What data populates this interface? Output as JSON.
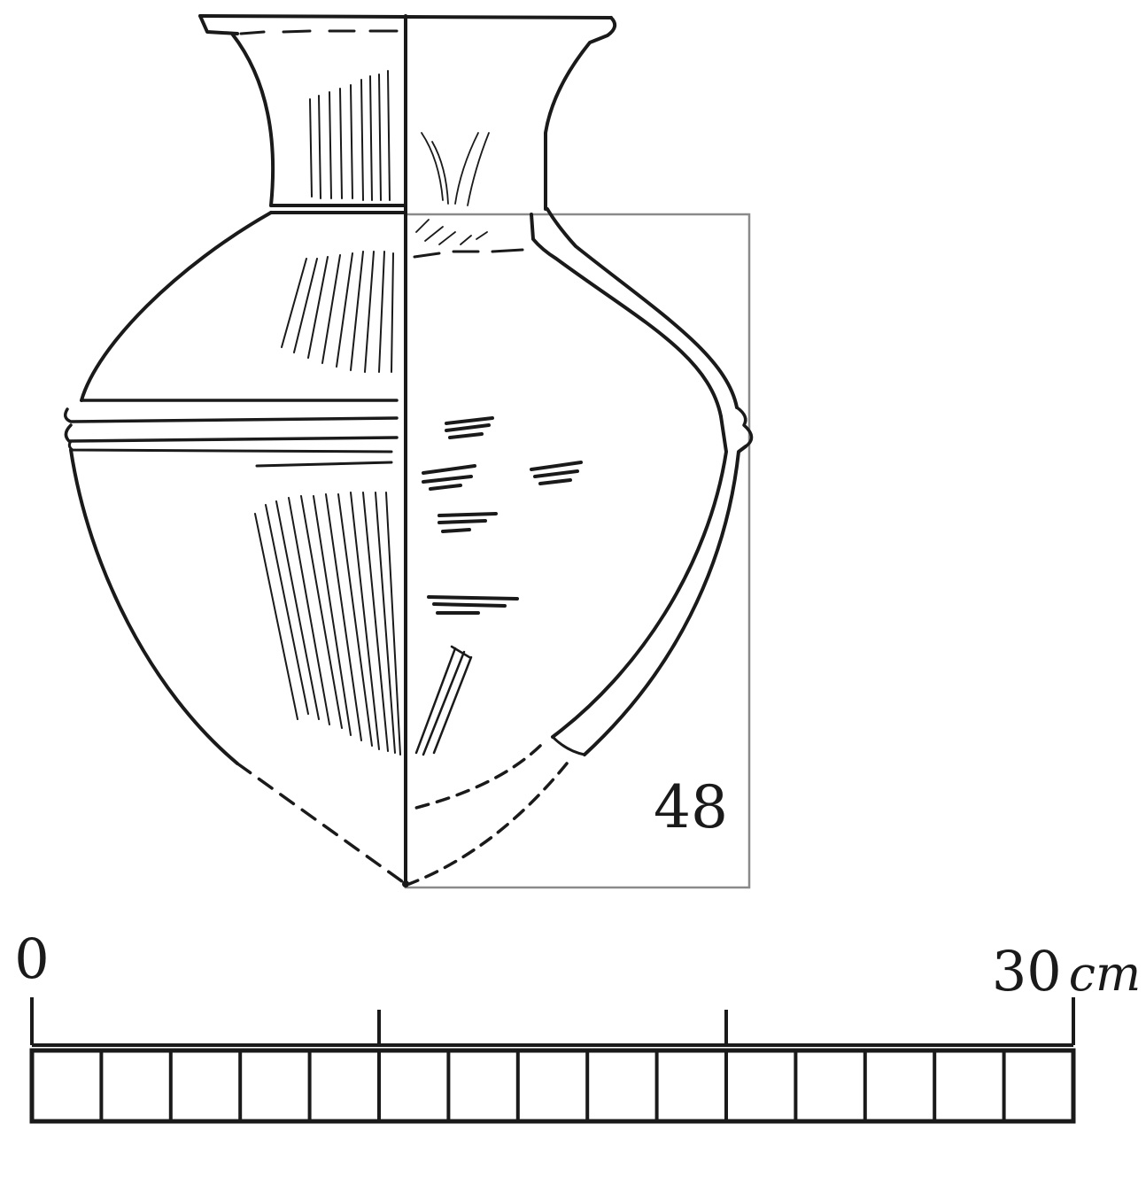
{
  "figure": {
    "label": "48",
    "subject": "vessel"
  },
  "scale_bar": {
    "start_label": "0",
    "end_label": "30",
    "unit": "cm",
    "segments": 15,
    "major_ticks": [
      0,
      10,
      20,
      30
    ]
  },
  "colors": {
    "ink": "#1a1a1a",
    "frame": "#8a8a8a",
    "paper": "#ffffff"
  }
}
